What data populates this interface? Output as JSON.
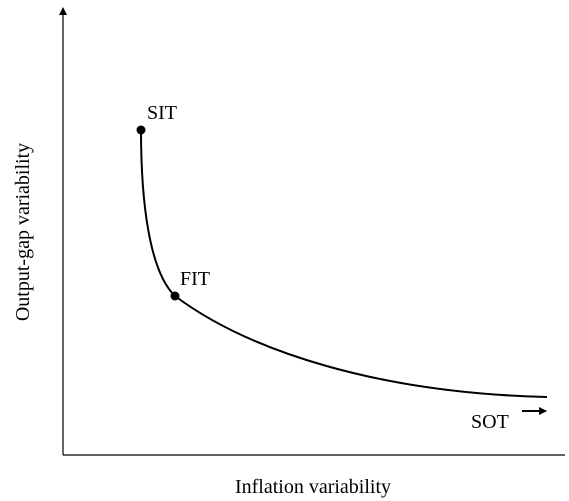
{
  "axes": {
    "x_label": "Inflation variability",
    "y_label": "Output-gap variability"
  },
  "points": [
    {
      "label": "SIT"
    },
    {
      "label": "FIT"
    }
  ],
  "annotation": "SOT"
}
